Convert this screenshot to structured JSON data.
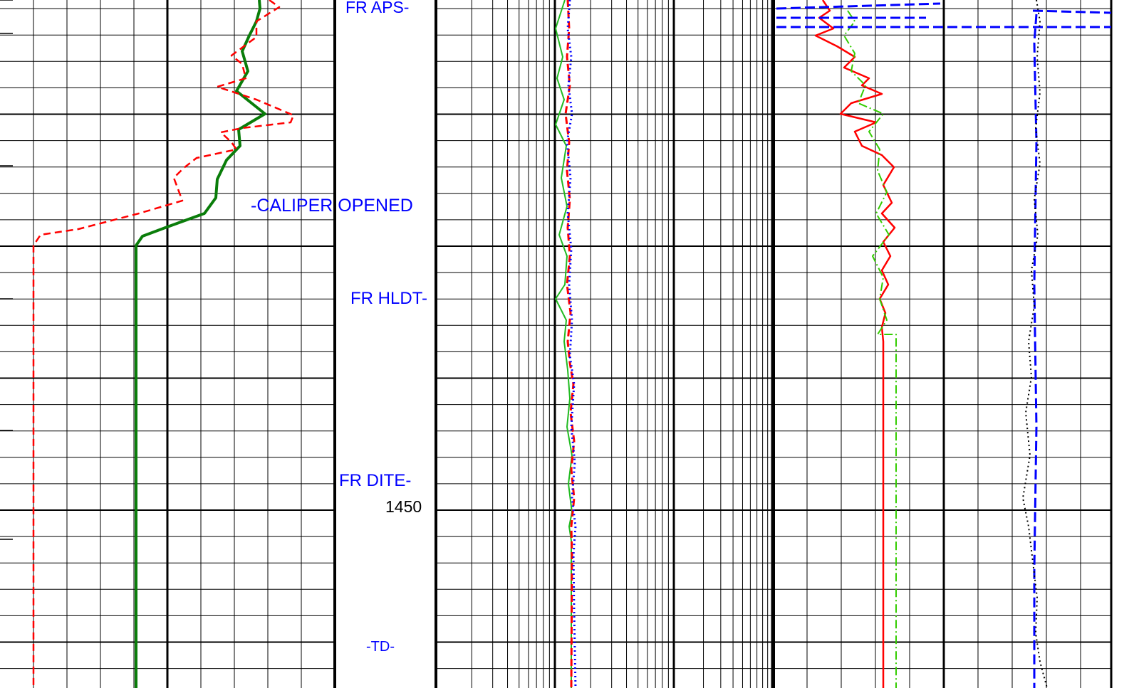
{
  "depth_track": {
    "depth_label": "1450",
    "annotations": [
      "FR APS-",
      "-CALIPER OPENED",
      "FR HLDT-",
      "FR DITE-",
      "-TD-"
    ]
  },
  "colors": {
    "grid": "#000000",
    "gamma_ray": "#0a7d0a",
    "caliper": "#ff0000",
    "annotation_text": "#0000ff",
    "resistivity_solid_green": "#22bb22",
    "resistivity_dashed_red": "#ff0000",
    "resistivity_dotted_blue": "#0000ff",
    "porosity_solid_red": "#ff0000",
    "porosity_dashdot_green": "#33cc00",
    "porosity_dashed_blue": "#0000ff",
    "porosity_dotted_black": "#000000"
  }
}
